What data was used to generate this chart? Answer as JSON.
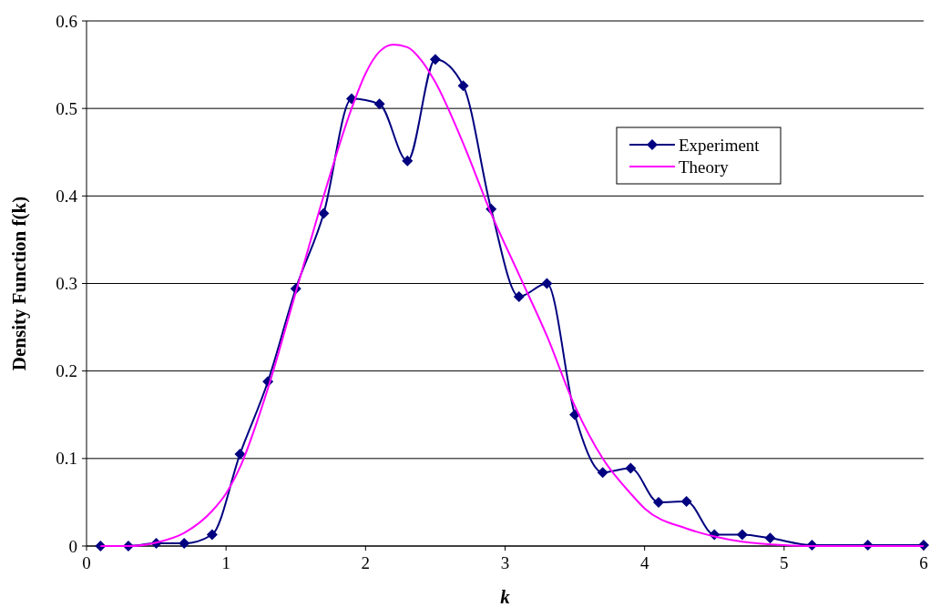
{
  "chart_data": {
    "type": "line",
    "xlabel": "k",
    "ylabel": "Density Function f(k)",
    "xlim": [
      0,
      6
    ],
    "xticks": [
      0,
      1,
      2,
      3,
      4,
      5,
      6
    ],
    "ylim": [
      0,
      0.6
    ],
    "yticks": [
      0,
      0.1,
      0.2,
      0.3,
      0.4,
      0.5,
      0.6
    ],
    "grid": "y",
    "legend": "top right",
    "series": [
      {
        "name": "Experiment",
        "color": "#000080",
        "marker": "diamond",
        "x": [
          0.1,
          0.3,
          0.5,
          0.7,
          0.9,
          1.1,
          1.3,
          1.5,
          1.7,
          1.9,
          2.1,
          2.3,
          2.5,
          2.7,
          2.9,
          3.1,
          3.3,
          3.5,
          3.7,
          3.9,
          4.1,
          4.3,
          4.5,
          4.7,
          4.9,
          5.2,
          5.6,
          6.0
        ],
        "values": [
          0,
          0,
          0.003,
          0.003,
          0.013,
          0.105,
          0.188,
          0.294,
          0.38,
          0.511,
          0.505,
          0.44,
          0.556,
          0.526,
          0.385,
          0.285,
          0.3,
          0.15,
          0.084,
          0.089,
          0.05,
          0.051,
          0.013,
          0.013,
          0.009,
          0.001,
          0.001,
          0.001
        ]
      },
      {
        "name": "Theory",
        "color": "#ff00ff",
        "marker": "none",
        "x": [
          0.1,
          0.3,
          0.5,
          0.7,
          0.9,
          1.0,
          1.1,
          1.3,
          1.5,
          1.7,
          1.9,
          2.0,
          2.1,
          2.2,
          2.3,
          2.4,
          2.5,
          2.7,
          2.9,
          3.1,
          3.3,
          3.5,
          3.7,
          3.9,
          4.0,
          4.3,
          4.5,
          4.7,
          5.0,
          5.2,
          6.0
        ],
        "values": [
          0,
          0,
          0.004,
          0.015,
          0.04,
          0.06,
          0.09,
          0.18,
          0.29,
          0.4,
          0.5,
          0.54,
          0.565,
          0.573,
          0.57,
          0.555,
          0.53,
          0.46,
          0.38,
          0.31,
          0.24,
          0.16,
          0.1,
          0.06,
          0.043,
          0.02,
          0.011,
          0.005,
          0.001,
          0,
          0
        ]
      }
    ]
  }
}
